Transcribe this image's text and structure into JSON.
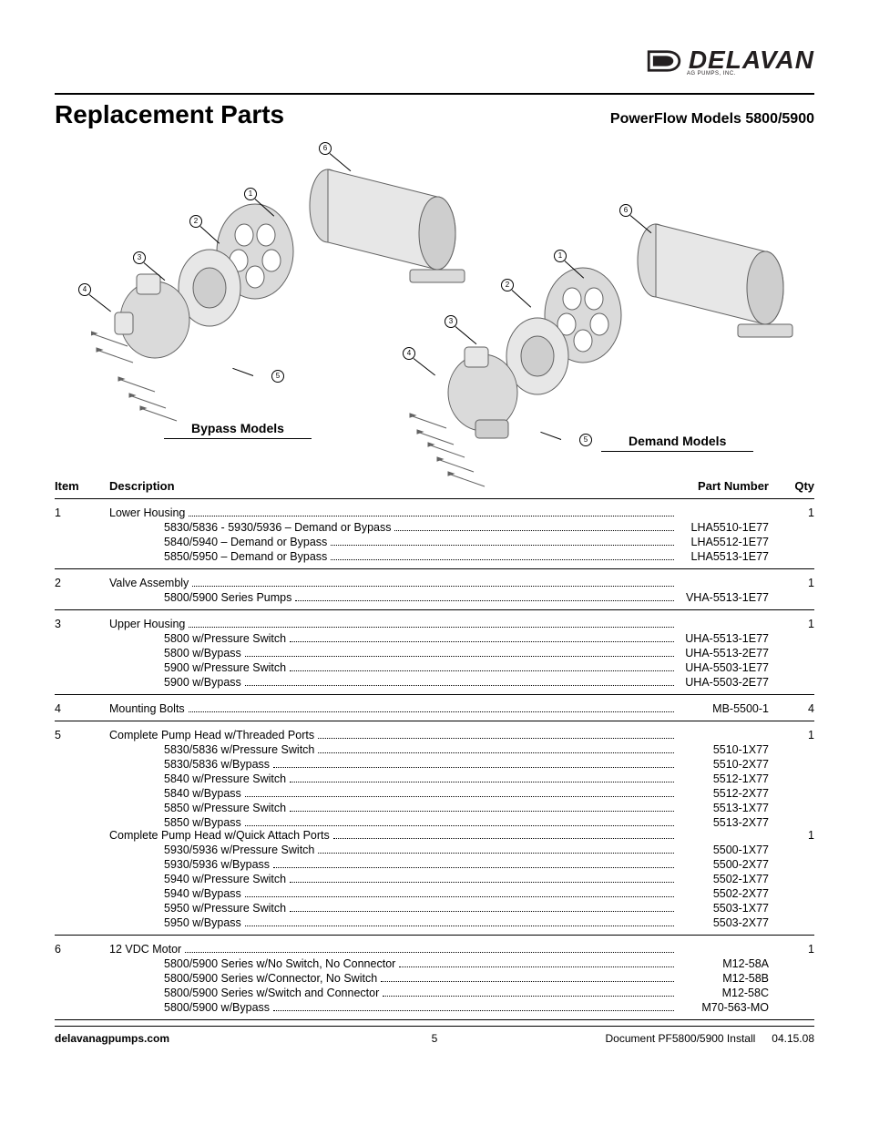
{
  "brand": {
    "name": "DELAVAN",
    "tagline": "AG PUMPS, INC."
  },
  "title": "Replacement Parts",
  "subtitle": "PowerFlow Models 5800/5900",
  "diagram": {
    "bypass_label": "Bypass Models",
    "demand_label": "Demand Models",
    "callouts": [
      "1",
      "2",
      "3",
      "4",
      "5",
      "6"
    ]
  },
  "table": {
    "headers": {
      "item": "Item",
      "description": "Description",
      "part_number": "Part Number",
      "qty": "Qty"
    },
    "items": [
      {
        "num": "1",
        "title": "Lower Housing",
        "title_pn": "",
        "qty": "1",
        "subs": [
          {
            "label": "5830/5836 - 5930/5936 – Demand or Bypass",
            "pn": "LHA5510-1E77"
          },
          {
            "label": "5840/5940 – Demand or Bypass",
            "pn": "LHA5512-1E77"
          },
          {
            "label": "5850/5950 – Demand or Bypass",
            "pn": "LHA5513-1E77"
          }
        ]
      },
      {
        "num": "2",
        "title": "Valve Assembly",
        "title_pn": "",
        "qty": "1",
        "subs": [
          {
            "label": "5800/5900 Series Pumps",
            "pn": "VHA-5513-1E77"
          }
        ]
      },
      {
        "num": "3",
        "title": "Upper Housing",
        "title_pn": "",
        "qty": "1",
        "subs": [
          {
            "label": "5800 w/Pressure Switch",
            "pn": "UHA-5513-1E77"
          },
          {
            "label": "5800 w/Bypass",
            "pn": "UHA-5513-2E77"
          },
          {
            "label": "5900 w/Pressure Switch",
            "pn": "UHA-5503-1E77"
          },
          {
            "label": "5900 w/Bypass",
            "pn": "UHA-5503-2E77"
          }
        ]
      },
      {
        "num": "4",
        "title": "Mounting Bolts",
        "title_pn": "MB-5500-1",
        "qty": "4",
        "subs": []
      },
      {
        "num": "5",
        "title": "Complete Pump Head w/Threaded Ports",
        "title_pn": "",
        "qty": "1",
        "subs": [
          {
            "label": "5830/5836 w/Pressure Switch",
            "pn": "5510-1X77"
          },
          {
            "label": "5830/5836 w/Bypass",
            "pn": "5510-2X77"
          },
          {
            "label": "5840 w/Pressure Switch",
            "pn": "5512-1X77"
          },
          {
            "label": "5840 w/Bypass",
            "pn": "5512-2X77"
          },
          {
            "label": "5850 w/Pressure Switch",
            "pn": "5513-1X77"
          },
          {
            "label": "5850 w/Bypass",
            "pn": "5513-2X77"
          }
        ],
        "second_title": "Complete Pump Head w/Quick Attach Ports",
        "second_qty": "1",
        "second_subs": [
          {
            "label": "5930/5936 w/Pressure Switch",
            "pn": "5500-1X77"
          },
          {
            "label": "5930/5936 w/Bypass",
            "pn": "5500-2X77"
          },
          {
            "label": "5940 w/Pressure Switch",
            "pn": "5502-1X77"
          },
          {
            "label": "5940 w/Bypass",
            "pn": "5502-2X77"
          },
          {
            "label": "5950 w/Pressure Switch",
            "pn": "5503-1X77"
          },
          {
            "label": "5950 w/Bypass",
            "pn": "5503-2X77"
          }
        ]
      },
      {
        "num": "6",
        "title": "12 VDC Motor",
        "title_pn": "",
        "qty": "1",
        "subs": [
          {
            "label": "5800/5900 Series w/No Switch, No Connector",
            "pn": "M12-58A"
          },
          {
            "label": "5800/5900 Series w/Connector, No Switch",
            "pn": "M12-58B"
          },
          {
            "label": "5800/5900 Series w/Switch and Connector",
            "pn": "M12-58C"
          },
          {
            "label": "5800/5900 w/Bypass",
            "pn": "M70-563-MO"
          }
        ]
      }
    ]
  },
  "footer": {
    "site": "delavanagpumps.com",
    "page": "5",
    "doc": "Document PF5800/5900 Install",
    "date": "04.15.08"
  },
  "colors": {
    "text": "#000000",
    "rule": "#000000",
    "diagram_fill": "#d9d9d9",
    "diagram_stroke": "#5a5a5a"
  }
}
